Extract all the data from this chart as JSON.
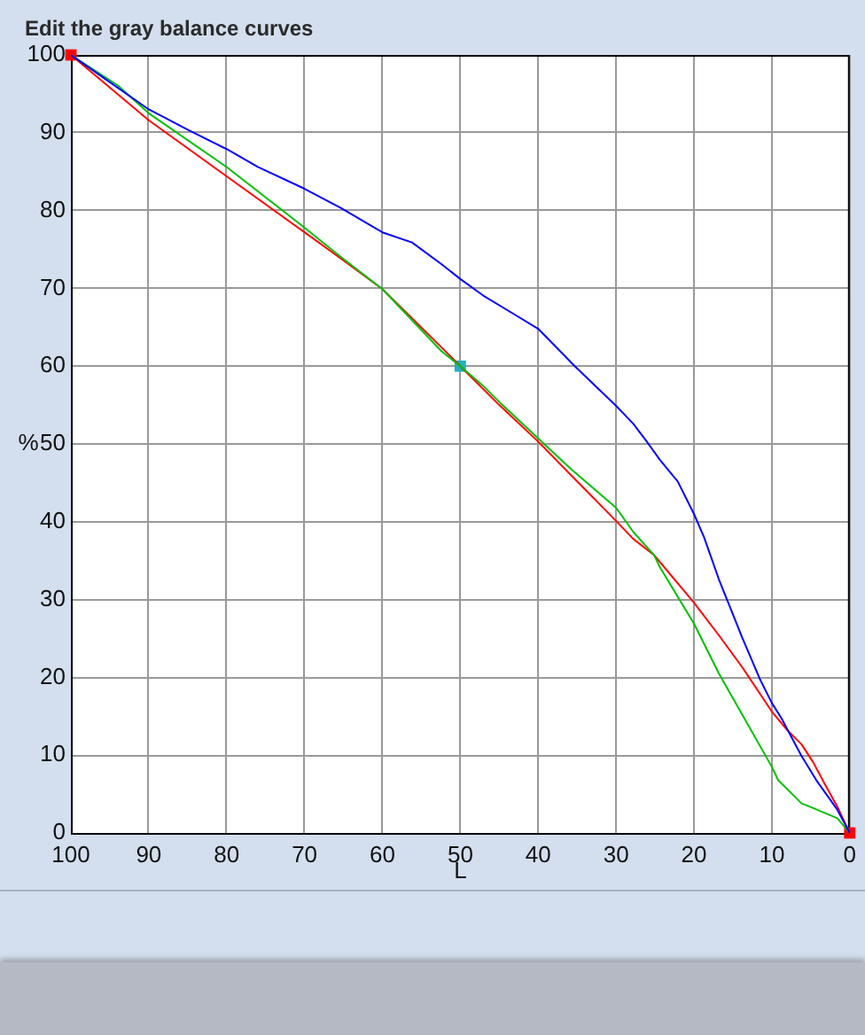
{
  "chart_data": {
    "type": "line",
    "title": "Edit the gray balance curves",
    "xlabel": "L",
    "ylabel": "%",
    "xlim": [
      100,
      0
    ],
    "ylim": [
      0,
      100
    ],
    "xticks": [
      100,
      90,
      80,
      70,
      60,
      50,
      40,
      30,
      20,
      10,
      0
    ],
    "yticks": [
      0,
      10,
      20,
      30,
      40,
      50,
      60,
      70,
      80,
      90,
      100
    ],
    "grid": true,
    "legend": false,
    "marker": "none",
    "line_style": "solid",
    "series": [
      {
        "color": "#0000ff",
        "x": [
          100,
          96,
          90,
          85,
          80,
          76,
          70,
          65.3,
          60,
          56.2,
          52.4,
          50,
          47.1,
          43.3,
          40,
          35.3,
          30,
          27.8,
          26.2,
          24.4,
          22.1,
          20,
          18.7,
          16.8,
          15.6,
          13.8,
          11.5,
          10,
          8.8,
          6.2,
          4.3,
          1.6,
          0
        ],
        "values": [
          100,
          97.2,
          93,
          90.4,
          87.9,
          85.6,
          82.8,
          80.3,
          77.2,
          75.9,
          73.1,
          71.2,
          69.1,
          66.8,
          64.8,
          60,
          54.9,
          52.6,
          50.5,
          48,
          45.2,
          41,
          38,
          32.6,
          29.6,
          25.1,
          19.7,
          16.7,
          14.8,
          9.9,
          6.8,
          3,
          0
        ]
      },
      {
        "color": "#00c000",
        "x": [
          100,
          94,
          90,
          80,
          70,
          65.3,
          60,
          52.4,
          50,
          47.1,
          44.8,
          40,
          35.7,
          30,
          27.8,
          25.1,
          24.4,
          20,
          16.8,
          13.8,
          10,
          9.2,
          6.2,
          4.7,
          1.6,
          0
        ],
        "values": [
          100,
          96.1,
          92.5,
          85.6,
          77.8,
          74,
          69.9,
          61.9,
          60,
          57.5,
          55.2,
          50.7,
          46.7,
          41.8,
          38.7,
          35.7,
          34.2,
          26.9,
          20.5,
          15.2,
          8.5,
          6.8,
          3.8,
          3.2,
          1.9,
          0
        ]
      },
      {
        "color": "#ff0000",
        "x": [
          100,
          90,
          80,
          70,
          65.3,
          60,
          52.4,
          50,
          45,
          40,
          35.7,
          30,
          27.8,
          25.1,
          20,
          16.8,
          13.8,
          10,
          8.1,
          6.2,
          4.7,
          3.1,
          1.6,
          0
        ],
        "values": [
          100,
          91.6,
          84.4,
          77.2,
          73.8,
          69.9,
          62.4,
          60,
          55,
          50.3,
          45.9,
          40.1,
          37.8,
          35.7,
          29.6,
          25.4,
          21.3,
          15.6,
          13.3,
          11.4,
          9.1,
          6.1,
          3.4,
          0
        ]
      },
      {
        "type": "scatter",
        "marker": "square",
        "colors": [
          "#ff0000",
          "#20b0c0",
          "#ff0000"
        ],
        "x": [
          100,
          50,
          0
        ],
        "values": [
          100,
          60,
          0
        ]
      }
    ]
  }
}
